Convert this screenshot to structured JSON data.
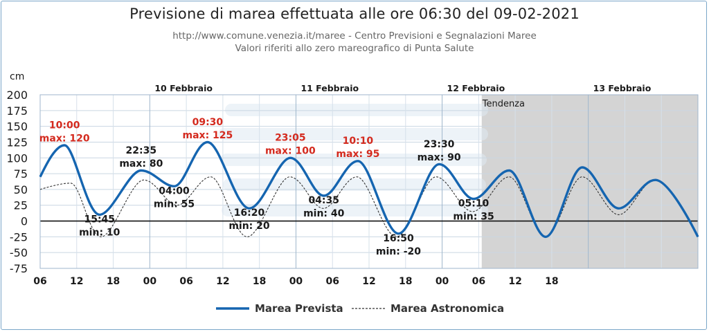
{
  "header": {
    "title": "Previsione di marea effettuata alle ore 06:30 del 09-02-2021",
    "subtitle_1": "http://www.comune.venezia.it/maree - Centro Previsioni e Segnalazioni Maree",
    "subtitle_2": "Valori riferiti allo zero mareografico di Punta Salute"
  },
  "colors": {
    "forecast": "#1565b0",
    "astronomical": "#333333",
    "annotation_max": "#d42a1e",
    "annotation_min": "#1a1a1a",
    "trend_shade": "#d4d4d4",
    "border": "#7aa6c8"
  },
  "chart_data": {
    "type": "line",
    "title": "Previsione di marea effettuata alle ore 06:30 del 09-02-2021",
    "ylabel": "cm",
    "ylim": [
      -75,
      200
    ],
    "yticks": [
      200,
      175,
      150,
      125,
      100,
      75,
      50,
      25,
      0,
      -25,
      -50,
      -75
    ],
    "xlim_hours_from_start": [
      0,
      108
    ],
    "x_tick_labels": [
      "06",
      "12",
      "18",
      "00",
      "06",
      "12",
      "18",
      "00",
      "06",
      "12",
      "18",
      "00",
      "06",
      "12",
      "18"
    ],
    "day_labels": [
      {
        "label": "10 Febbraio",
        "hour": 18
      },
      {
        "label": "11 Febbraio",
        "hour": 42
      },
      {
        "label": "12 Febbraio",
        "hour": 66
      },
      {
        "label": "13 Febbraio",
        "hour": 90
      }
    ],
    "trend_region": {
      "label": "Tendenza",
      "from_hour": 72.5,
      "to_hour": 108
    },
    "legend_position": "bottom-center",
    "grid": true,
    "series": [
      {
        "name": "Marea Prevista",
        "style": "solid",
        "points": [
          [
            0,
            70
          ],
          [
            4,
            120
          ],
          [
            9.75,
            10
          ],
          [
            16.58,
            80
          ],
          [
            22,
            55
          ],
          [
            27.5,
            125
          ],
          [
            34.33,
            20
          ],
          [
            41.08,
            100
          ],
          [
            46.58,
            40
          ],
          [
            52.17,
            95
          ],
          [
            58.83,
            -20
          ],
          [
            65.5,
            90
          ],
          [
            71.17,
            35
          ],
          [
            77,
            80
          ],
          [
            83,
            -25
          ],
          [
            89,
            85
          ],
          [
            95,
            20
          ],
          [
            101,
            65
          ],
          [
            108,
            -25
          ]
        ]
      },
      {
        "name": "Marea Astronomica",
        "style": "dashed",
        "points": [
          [
            0,
            50
          ],
          [
            5,
            60
          ],
          [
            10,
            -25
          ],
          [
            17,
            65
          ],
          [
            22.5,
            25
          ],
          [
            28,
            70
          ],
          [
            34,
            -25
          ],
          [
            41,
            70
          ],
          [
            46.5,
            20
          ],
          [
            52,
            70
          ],
          [
            58.5,
            -25
          ],
          [
            65,
            70
          ],
          [
            71,
            15
          ],
          [
            77,
            70
          ],
          [
            83,
            -25
          ],
          [
            89,
            70
          ],
          [
            95,
            10
          ],
          [
            101,
            65
          ],
          [
            108,
            -25
          ]
        ]
      }
    ],
    "annotations": [
      {
        "time": "10:00",
        "label": "max: 120",
        "kind": "max",
        "at": [
          4,
          147
        ],
        "highlight": true
      },
      {
        "time": "22:35",
        "label": "max: 80",
        "kind": "max",
        "at": [
          16.58,
          107
        ],
        "highlight": false
      },
      {
        "time": "09:30",
        "label": "max: 125",
        "kind": "max",
        "at": [
          27.5,
          152
        ],
        "highlight": true
      },
      {
        "time": "23:05",
        "label": "max: 100",
        "kind": "max",
        "at": [
          41.08,
          127
        ],
        "highlight": true
      },
      {
        "time": "10:10",
        "label": "max: 95",
        "kind": "max",
        "at": [
          52.17,
          122
        ],
        "highlight": true
      },
      {
        "time": "23:30",
        "label": "max: 90",
        "kind": "max",
        "at": [
          65.5,
          117
        ],
        "highlight": false
      },
      {
        "time": "15:45",
        "label": "min: 10",
        "kind": "min",
        "at": [
          9.75,
          -2
        ],
        "highlight": false
      },
      {
        "time": "04:00",
        "label": "min: 55",
        "kind": "min",
        "at": [
          22,
          43
        ],
        "highlight": false
      },
      {
        "time": "16:20",
        "label": "min: 20",
        "kind": "min",
        "at": [
          34.33,
          8
        ],
        "highlight": false
      },
      {
        "time": "04:35",
        "label": "min: 40",
        "kind": "min",
        "at": [
          46.58,
          28
        ],
        "highlight": false
      },
      {
        "time": "16:50",
        "label": "min: -20",
        "kind": "min",
        "at": [
          58.83,
          -32
        ],
        "highlight": false
      },
      {
        "time": "05:10",
        "label": "min: 35",
        "kind": "min",
        "at": [
          71.17,
          23
        ],
        "highlight": false
      }
    ]
  },
  "legend": {
    "forecast_label": "Marea Prevista",
    "astronomical_label": "Marea Astronomica"
  }
}
